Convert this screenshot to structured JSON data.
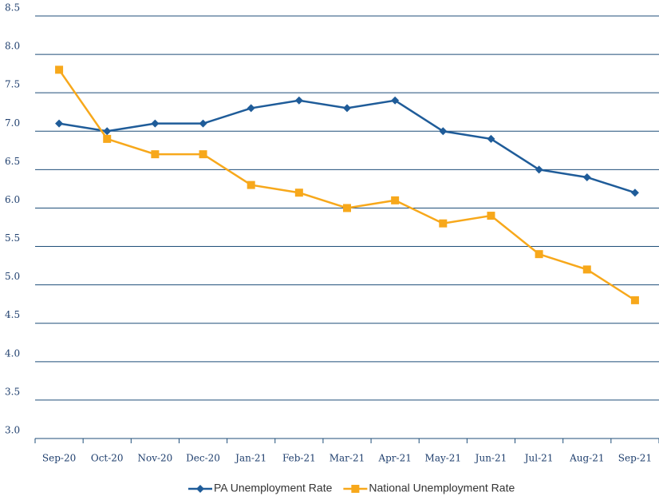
{
  "chart_data": {
    "type": "line",
    "categories": [
      "Sep-20",
      "Oct-20",
      "Nov-20",
      "Dec-20",
      "Jan-21",
      "Feb-21",
      "Mar-21",
      "Apr-21",
      "May-21",
      "Jun-21",
      "Jul-21",
      "Aug-21",
      "Sep-21"
    ],
    "series": [
      {
        "name": "PA Unemployment Rate",
        "color": "#1f5c99",
        "marker": "diamond",
        "values": [
          7.1,
          7.0,
          7.1,
          7.1,
          7.3,
          7.4,
          7.3,
          7.4,
          7.0,
          6.9,
          6.5,
          6.4,
          6.2
        ]
      },
      {
        "name": "National Unemployment Rate",
        "color": "#f7a81b",
        "marker": "square",
        "values": [
          7.8,
          6.9,
          6.7,
          6.7,
          6.3,
          6.2,
          6.0,
          6.1,
          5.8,
          5.9,
          5.4,
          5.2,
          4.8
        ]
      }
    ],
    "ylim": [
      3.0,
      8.5
    ],
    "yticks": [
      {
        "value": 3,
        "label": "3.0"
      },
      3.5,
      {
        "value": 4,
        "label": "4.0"
      },
      4.5,
      {
        "value": 5,
        "label": "5.0"
      },
      5.5,
      {
        "value": 6,
        "label": "6.0"
      },
      6.5,
      {
        "value": 7,
        "label": "7.0"
      },
      7.5,
      {
        "value": 8,
        "label": "8.0"
      },
      8.5
    ],
    "grid": true,
    "legend": "bottom"
  }
}
